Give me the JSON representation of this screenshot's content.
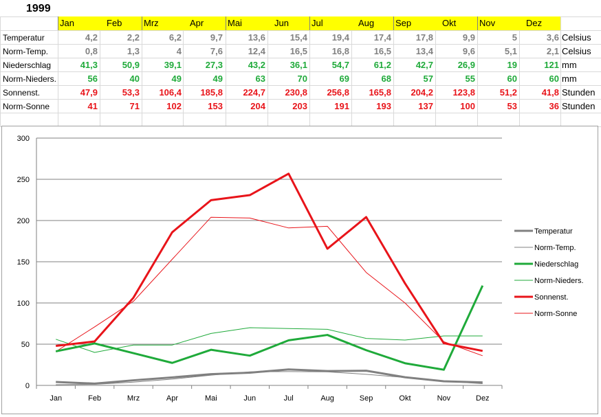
{
  "sheet": {
    "year": "1999",
    "months": [
      "Jan",
      "Feb",
      "Mrz",
      "Apr",
      "Mai",
      "Jun",
      "Jul",
      "Aug",
      "Sep",
      "Okt",
      "Nov",
      "Dez"
    ],
    "rows": [
      {
        "label": "Temperatur",
        "values": [
          "4,2",
          "2,2",
          "6,2",
          "9,7",
          "13,6",
          "15,4",
          "19,4",
          "17,4",
          "17,8",
          "9,9",
          "5",
          "3,6"
        ],
        "unit": "Celsius",
        "color": "#808080"
      },
      {
        "label": "Norm-Temp.",
        "values": [
          "0,8",
          "1,3",
          "4",
          "7,6",
          "12,4",
          "16,5",
          "16,8",
          "16,5",
          "13,4",
          "9,6",
          "5,1",
          "2,1"
        ],
        "unit": "Celsius",
        "color": "#808080"
      },
      {
        "label": "Niederschlag",
        "values": [
          "41,3",
          "50,9",
          "39,1",
          "27,3",
          "43,2",
          "36,1",
          "54,7",
          "61,2",
          "42,7",
          "26,9",
          "19",
          "121"
        ],
        "unit": "mm",
        "color": "#1faa3a"
      },
      {
        "label": "Norm-Nieders.",
        "values": [
          "56",
          "40",
          "49",
          "49",
          "63",
          "70",
          "69",
          "68",
          "57",
          "55",
          "60",
          "60"
        ],
        "unit": "mm",
        "color": "#1faa3a"
      },
      {
        "label": "Sonnenst.",
        "values": [
          "47,9",
          "53,3",
          "106,4",
          "185,8",
          "224,7",
          "230,8",
          "256,8",
          "165,8",
          "204,2",
          "123,8",
          "51,2",
          "41,8"
        ],
        "unit": "Stunden",
        "color": "#e8141a"
      },
      {
        "label": "Norm-Sonne",
        "values": [
          "41",
          "71",
          "102",
          "153",
          "204",
          "203",
          "191",
          "193",
          "137",
          "100",
          "53",
          "36"
        ],
        "unit": "Stunden",
        "color": "#e8141a"
      }
    ]
  },
  "chart_data": {
    "type": "line",
    "categories": [
      "Jan",
      "Feb",
      "Mrz",
      "Apr",
      "Mai",
      "Jun",
      "Jul",
      "Aug",
      "Sep",
      "Okt",
      "Nov",
      "Dez"
    ],
    "ylim": [
      0,
      300
    ],
    "yticks": [
      0,
      50,
      100,
      150,
      200,
      250,
      300
    ],
    "grid": true,
    "legend_position": "right",
    "series": [
      {
        "name": "Temperatur",
        "values": [
          4.2,
          2.2,
          6.2,
          9.7,
          13.6,
          15.4,
          19.4,
          17.4,
          17.8,
          9.9,
          5,
          3.6
        ],
        "color": "#808080",
        "bold": true
      },
      {
        "name": "Norm-Temp.",
        "values": [
          0.8,
          1.3,
          4,
          7.6,
          12.4,
          16.5,
          16.8,
          16.5,
          13.4,
          9.6,
          5.1,
          2.1
        ],
        "color": "#808080",
        "bold": false
      },
      {
        "name": "Niederschlag",
        "values": [
          41.3,
          50.9,
          39.1,
          27.3,
          43.2,
          36.1,
          54.7,
          61.2,
          42.7,
          26.9,
          19,
          121
        ],
        "color": "#1faa3a",
        "bold": true
      },
      {
        "name": "Norm-Nieders.",
        "values": [
          56,
          40,
          49,
          49,
          63,
          70,
          69,
          68,
          57,
          55,
          60,
          60
        ],
        "color": "#1faa3a",
        "bold": false
      },
      {
        "name": "Sonnenst.",
        "values": [
          47.9,
          53.3,
          106.4,
          185.8,
          224.7,
          230.8,
          256.8,
          165.8,
          204.2,
          123.8,
          51.2,
          41.8
        ],
        "color": "#e8141a",
        "bold": true
      },
      {
        "name": "Norm-Sonne",
        "values": [
          41,
          71,
          102,
          153,
          204,
          203,
          191,
          193,
          137,
          100,
          53,
          36
        ],
        "color": "#e8141a",
        "bold": false
      }
    ]
  }
}
